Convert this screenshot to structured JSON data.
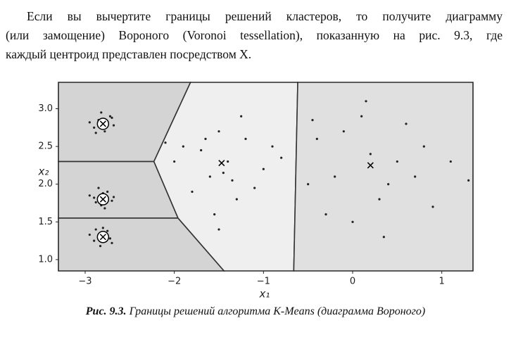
{
  "paragraph": [
    "Если вы вычертите границы решений кластеров, то получите диаграмму",
    "(или замощение) Вороного (Voronoi tessellation), показанную на рис. 9.3, где",
    "каждый центроид представлен посредством X."
  ],
  "chart_data": {
    "type": "scatter",
    "xlabel": "x₁",
    "ylabel": "x₂",
    "xlim": [
      -3.3,
      1.35
    ],
    "ylim": [
      0.85,
      3.35
    ],
    "xticks": [
      {
        "value": -3,
        "label": "−3"
      },
      {
        "value": -2,
        "label": "−2"
      },
      {
        "value": -1,
        "label": "−1"
      },
      0,
      1
    ],
    "yticks": [
      {
        "value": 1,
        "label": "1.0"
      },
      1.5,
      {
        "value": 2,
        "label": "2.0"
      },
      2.5,
      {
        "value": 3,
        "label": "3.0"
      }
    ],
    "series": [
      {
        "color": "#222222",
        "x": [
          -2.85,
          -2.72,
          -2.9,
          -2.78,
          -2.95,
          -2.68,
          -2.82,
          -2.75,
          -2.88,
          -2.7,
          -2.9,
          -2.75,
          -2.82,
          -2.7,
          -2.95,
          -2.85,
          -2.78,
          -2.68,
          -2.88,
          -2.8,
          -2.85,
          -2.75,
          -2.9,
          -2.7,
          -2.8,
          -2.95,
          -2.72,
          -2.83,
          -2.88,
          -2.78,
          -1.9,
          -1.6,
          -1.2,
          -1.4,
          -1.8,
          -1.0,
          -1.5,
          -1.3,
          -2.0,
          -1.7,
          -1.1,
          -1.45,
          -1.55,
          -0.9,
          -1.25,
          -1.65,
          -1.35,
          -2.1,
          -0.8,
          -1.5,
          -0.4,
          0.1,
          0.5,
          0.3,
          -0.2,
          0.8,
          0.0,
          0.6,
          -0.5,
          0.2,
          0.9,
          -0.1,
          0.4,
          1.1,
          -0.3,
          0.7,
          0.15,
          1.3,
          -0.45,
          0.35
        ],
        "values": [
          2.85,
          2.9,
          2.75,
          2.7,
          2.82,
          2.78,
          2.95,
          2.83,
          2.68,
          2.88,
          1.82,
          1.9,
          1.72,
          1.78,
          1.85,
          1.95,
          1.68,
          1.83,
          1.76,
          1.88,
          1.3,
          1.38,
          1.25,
          1.22,
          1.42,
          1.33,
          1.28,
          1.18,
          1.4,
          1.35,
          2.5,
          2.1,
          2.6,
          2.3,
          1.9,
          2.2,
          2.7,
          1.8,
          2.3,
          2.45,
          1.95,
          2.15,
          1.6,
          2.5,
          2.9,
          2.6,
          2.05,
          2.55,
          2.35,
          1.4,
          2.6,
          2.9,
          2.3,
          1.8,
          2.1,
          2.5,
          1.5,
          2.8,
          2.0,
          2.4,
          1.7,
          2.7,
          2.0,
          2.3,
          1.6,
          2.1,
          3.1,
          2.05,
          2.85,
          1.3
        ]
      },
      {
        "color": "#000000",
        "marker": "x",
        "x": [
          -2.8,
          -2.8,
          -2.8,
          -1.47,
          0.2
        ],
        "values": [
          2.8,
          1.8,
          1.3,
          2.28,
          2.25
        ],
        "region_colors": [
          "#d4d4d4",
          "#d4d4d4",
          "#d4d4d4",
          "#efefef",
          "#e0e0e0"
        ]
      }
    ]
  },
  "caption": {
    "label": "Рис. 9.3.",
    "text": "Границы решений алгоритма K-Means (диаграмма Вороного)"
  }
}
